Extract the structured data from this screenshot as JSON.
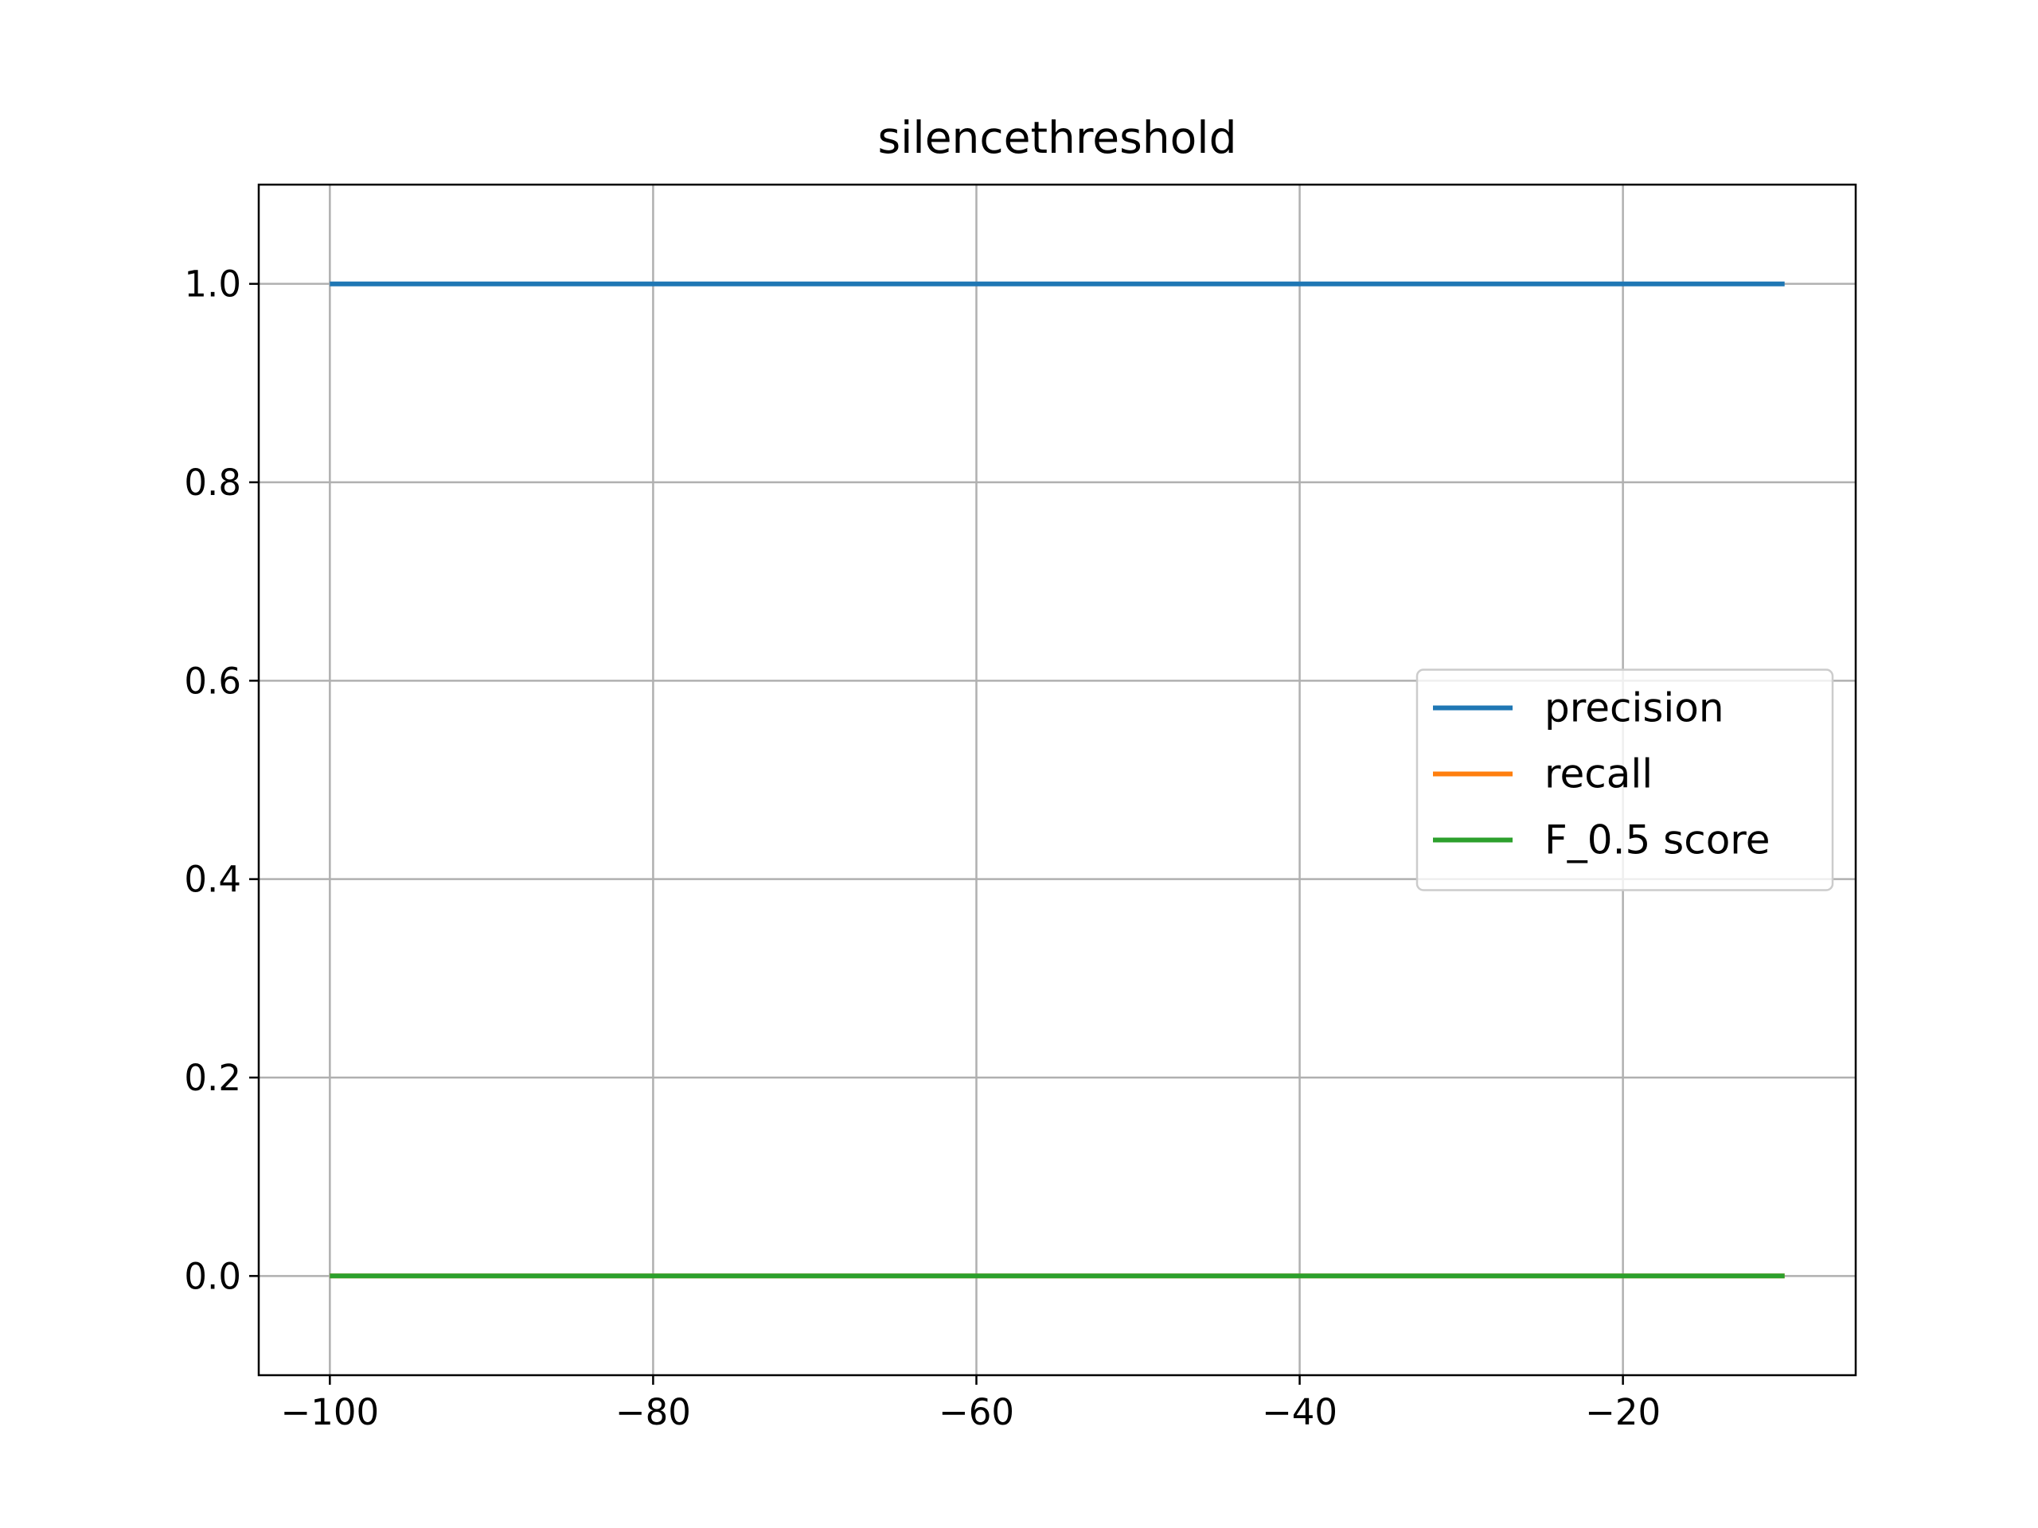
{
  "chart_data": {
    "type": "line",
    "title": "silencethreshold",
    "xlabel": "",
    "ylabel": "",
    "xlim": [
      -104.4,
      -5.6
    ],
    "ylim": [
      -0.1,
      1.1
    ],
    "xticks": [
      -100,
      -80,
      -60,
      -40,
      -20
    ],
    "xtick_labels": [
      "−100",
      "−80",
      "−60",
      "−40",
      "−20"
    ],
    "yticks": [
      0.0,
      0.2,
      0.4,
      0.6,
      0.8,
      1.0
    ],
    "ytick_labels": [
      "0.0",
      "0.2",
      "0.4",
      "0.6",
      "0.8",
      "1.0"
    ],
    "grid": true,
    "legend_position": "center-right",
    "series": [
      {
        "name": "precision",
        "color": "#1f77b4",
        "x": [
          -100,
          -10
        ],
        "y": [
          1.0,
          1.0
        ]
      },
      {
        "name": "recall",
        "color": "#ff7f0e",
        "x": [
          -100,
          -10
        ],
        "y": [
          0.0,
          0.0
        ]
      },
      {
        "name": "F_0.5 score",
        "color": "#2ca02c",
        "x": [
          -100,
          -10
        ],
        "y": [
          0.0,
          0.0
        ]
      }
    ]
  }
}
